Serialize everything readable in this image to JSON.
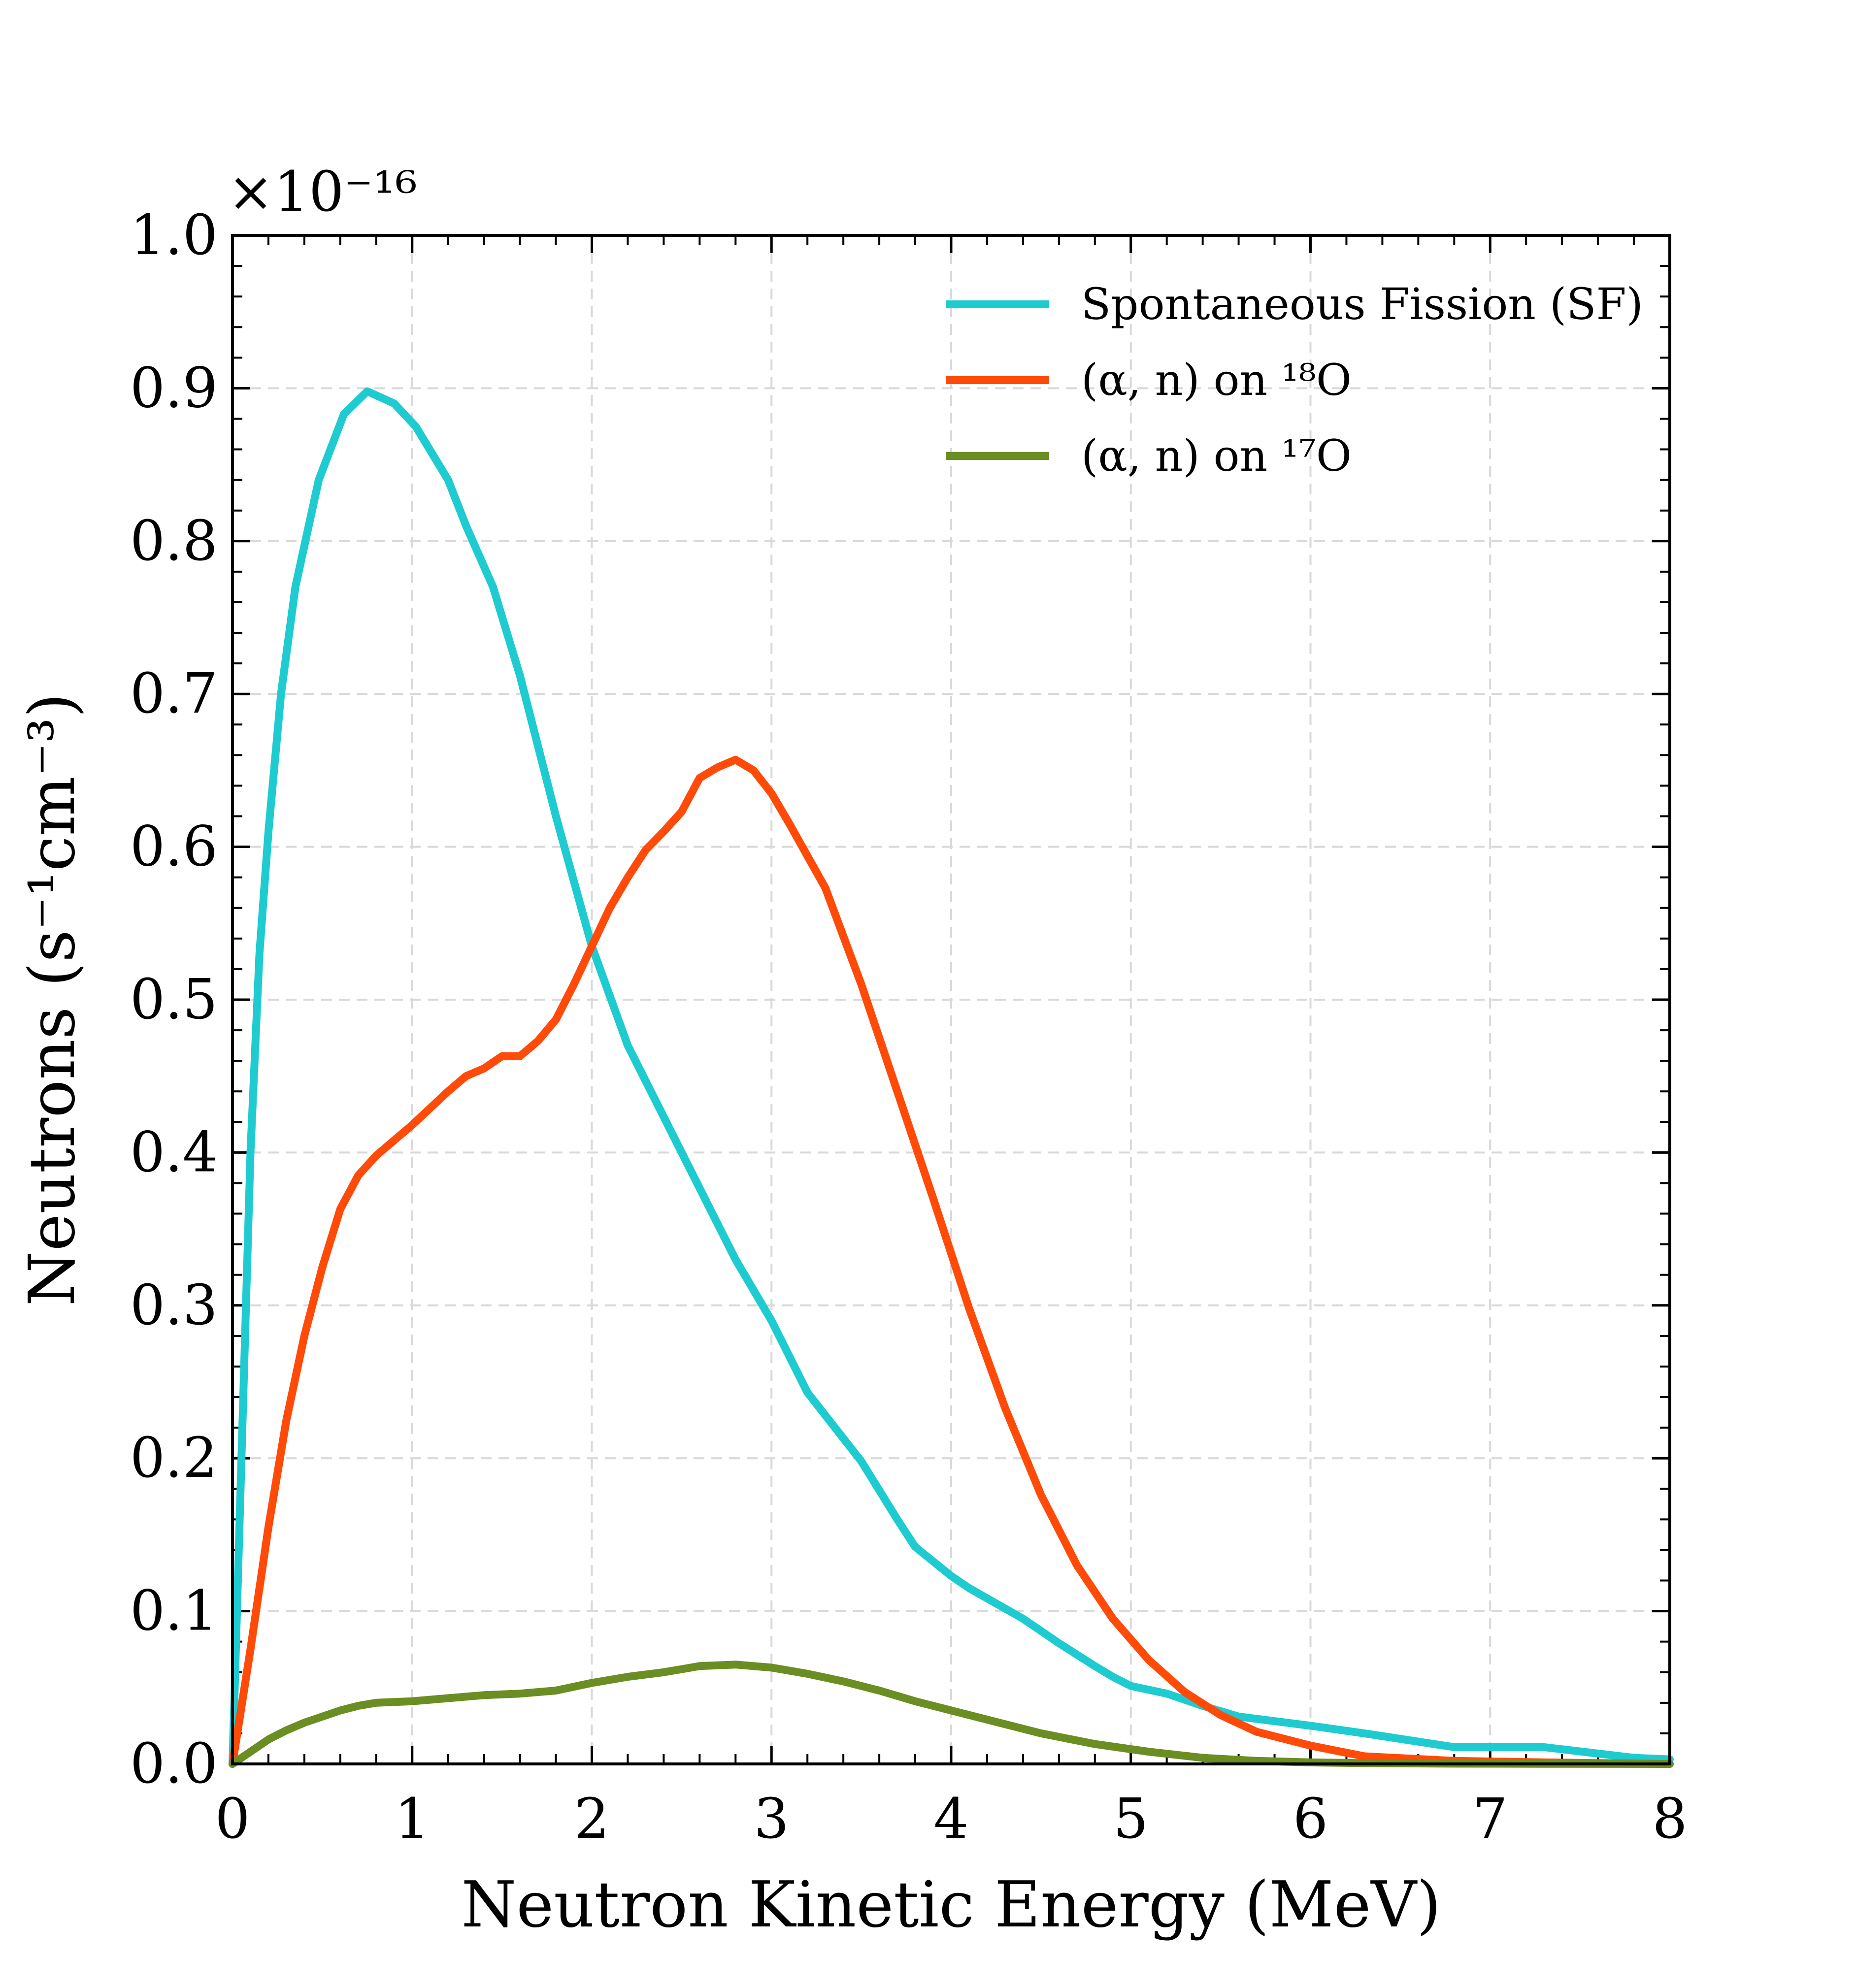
{
  "chart_data": {
    "type": "line",
    "title": "",
    "xlabel": "Neutron Kinetic Energy (MeV)",
    "ylabel": "Neutrons (s⁻¹cm⁻³)",
    "y_scale_label": "×10⁻¹⁶",
    "xlim": [
      0,
      8
    ],
    "ylim": [
      0,
      1.0
    ],
    "grid": true,
    "legend_position": "top-right",
    "x_ticks": [
      "0",
      "1",
      "2",
      "3",
      "4",
      "5",
      "6",
      "7",
      "8"
    ],
    "y_ticks": [
      "0.0",
      "0.1",
      "0.2",
      "0.3",
      "0.4",
      "0.5",
      "0.6",
      "0.7",
      "0.8",
      "0.9",
      "1.0"
    ],
    "series": [
      {
        "name": "Spontaneous Fission (SF)",
        "color": "#1ECBD0",
        "x": [
          0,
          0.05,
          0.1,
          0.15,
          0.2,
          0.27,
          0.35,
          0.48,
          0.62,
          0.75,
          0.9,
          1.02,
          1.2,
          1.3,
          1.45,
          1.6,
          1.8,
          2.0,
          2.2,
          2.5,
          2.8,
          3.0,
          3.2,
          3.5,
          3.7,
          3.8,
          4.0,
          4.1,
          4.4,
          4.6,
          4.8,
          4.9,
          5.0,
          5.2,
          5.4,
          5.6,
          5.8,
          6.0,
          6.3,
          6.8,
          7.3,
          7.8,
          8.0
        ],
        "values": [
          0,
          0.2,
          0.4,
          0.53,
          0.61,
          0.7,
          0.77,
          0.84,
          0.883,
          0.898,
          0.89,
          0.875,
          0.84,
          0.81,
          0.77,
          0.712,
          0.62,
          0.535,
          0.47,
          0.4,
          0.33,
          0.29,
          0.243,
          0.198,
          0.16,
          0.142,
          0.123,
          0.115,
          0.095,
          0.079,
          0.064,
          0.057,
          0.051,
          0.046,
          0.038,
          0.031,
          0.028,
          0.025,
          0.02,
          0.011,
          0.011,
          0.004,
          0.003
        ]
      },
      {
        "name": "(α, n) on ¹⁸O",
        "color": "#FF4A08",
        "x": [
          0,
          0.1,
          0.2,
          0.3,
          0.4,
          0.5,
          0.6,
          0.7,
          0.8,
          1.0,
          1.2,
          1.3,
          1.4,
          1.5,
          1.6,
          1.7,
          1.8,
          1.9,
          2.0,
          2.1,
          2.2,
          2.3,
          2.4,
          2.5,
          2.6,
          2.7,
          2.8,
          2.9,
          3.0,
          3.1,
          3.3,
          3.5,
          3.7,
          3.9,
          4.1,
          4.3,
          4.5,
          4.7,
          4.9,
          5.1,
          5.3,
          5.5,
          5.7,
          6.0,
          6.3,
          6.8,
          7.3,
          8.0
        ],
        "values": [
          0,
          0.075,
          0.155,
          0.225,
          0.28,
          0.325,
          0.363,
          0.385,
          0.398,
          0.418,
          0.44,
          0.45,
          0.455,
          0.463,
          0.463,
          0.473,
          0.487,
          0.51,
          0.535,
          0.56,
          0.58,
          0.598,
          0.61,
          0.623,
          0.645,
          0.652,
          0.657,
          0.65,
          0.635,
          0.615,
          0.573,
          0.51,
          0.44,
          0.37,
          0.298,
          0.233,
          0.176,
          0.13,
          0.095,
          0.068,
          0.047,
          0.032,
          0.021,
          0.012,
          0.005,
          0.002,
          0.001,
          0.0
        ]
      },
      {
        "name": "(α, n) on ¹⁷O",
        "color": "#6B8E23",
        "x": [
          0,
          0.1,
          0.2,
          0.3,
          0.4,
          0.5,
          0.6,
          0.7,
          0.8,
          1.0,
          1.2,
          1.4,
          1.6,
          1.8,
          2.0,
          2.2,
          2.4,
          2.5,
          2.6,
          2.8,
          3.0,
          3.2,
          3.4,
          3.6,
          3.8,
          4.0,
          4.2,
          4.5,
          4.8,
          5.1,
          5.4,
          5.7,
          6.0,
          6.3,
          6.8,
          7.3,
          8.0
        ],
        "values": [
          0,
          0.008,
          0.016,
          0.022,
          0.027,
          0.031,
          0.035,
          0.038,
          0.04,
          0.041,
          0.043,
          0.045,
          0.046,
          0.048,
          0.053,
          0.057,
          0.06,
          0.062,
          0.064,
          0.065,
          0.063,
          0.059,
          0.054,
          0.048,
          0.041,
          0.035,
          0.029,
          0.02,
          0.013,
          0.008,
          0.004,
          0.002,
          0.001,
          0.0005,
          0.0002,
          0.0001,
          0.0
        ]
      }
    ]
  }
}
